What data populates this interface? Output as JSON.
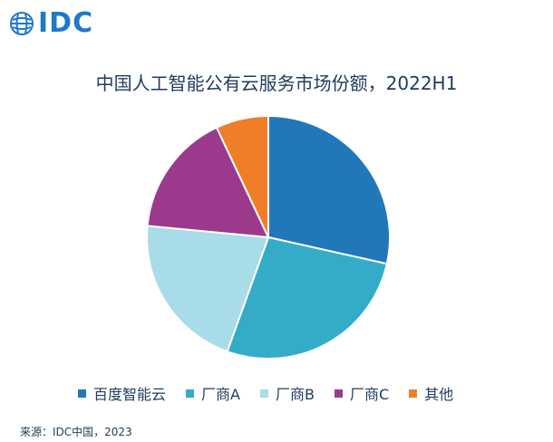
{
  "logo": {
    "text": "IDC"
  },
  "title": "中国人工智能公有云服务市场份额，2022H1",
  "source": "来源：IDC中国，2023",
  "chart_data": {
    "type": "pie",
    "title": "中国人工智能公有云服务市场份额，2022H1",
    "legend_position": "bottom",
    "categories": [
      "百度智能云",
      "厂商A",
      "厂商B",
      "厂商C",
      "其他"
    ],
    "values": [
      28.5,
      27.0,
      21.0,
      16.5,
      7.0
    ],
    "colors": [
      "#2277b8",
      "#34acc8",
      "#a8dce9",
      "#9b3a8d",
      "#f07d27"
    ],
    "start_angle_deg": 0,
    "direction": "clockwise"
  }
}
